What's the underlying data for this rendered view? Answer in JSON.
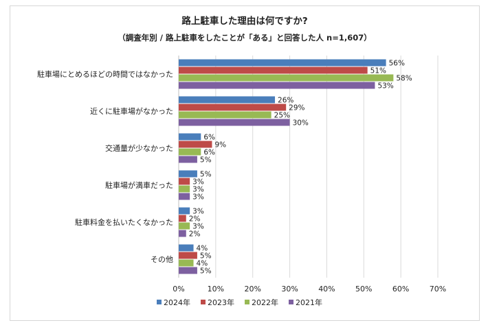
{
  "chart_data": {
    "type": "bar",
    "orientation": "horizontal",
    "title": "路上駐車した理由は何ですか?",
    "subtitle": "（調査年別 / 路上駐車をしたことが「ある」と回答した人 n=1,607）",
    "categories": [
      "駐車場にとめるほどの時間ではなかった",
      "近くに駐車場がなかった",
      "交通量が少なかった",
      "駐車場が満車だった",
      "駐車料金を払いたくなかった",
      "その他"
    ],
    "series": [
      {
        "name": "2024年",
        "color": "#4a7ebb",
        "values": [
          56,
          26,
          6,
          5,
          3,
          4
        ]
      },
      {
        "name": "2023年",
        "color": "#be4b48",
        "values": [
          51,
          29,
          9,
          3,
          2,
          5
        ]
      },
      {
        "name": "2022年",
        "color": "#98b954",
        "values": [
          58,
          25,
          6,
          3,
          3,
          4
        ]
      },
      {
        "name": "2021年",
        "color": "#7d60a0",
        "values": [
          53,
          30,
          5,
          3,
          2,
          5
        ]
      }
    ],
    "value_suffix": "%",
    "xlim": [
      0,
      70
    ],
    "xticks": [
      "0%",
      "10%",
      "20%",
      "30%",
      "40%",
      "50%",
      "60%",
      "70%"
    ],
    "grid": true,
    "legend": "bottom"
  }
}
